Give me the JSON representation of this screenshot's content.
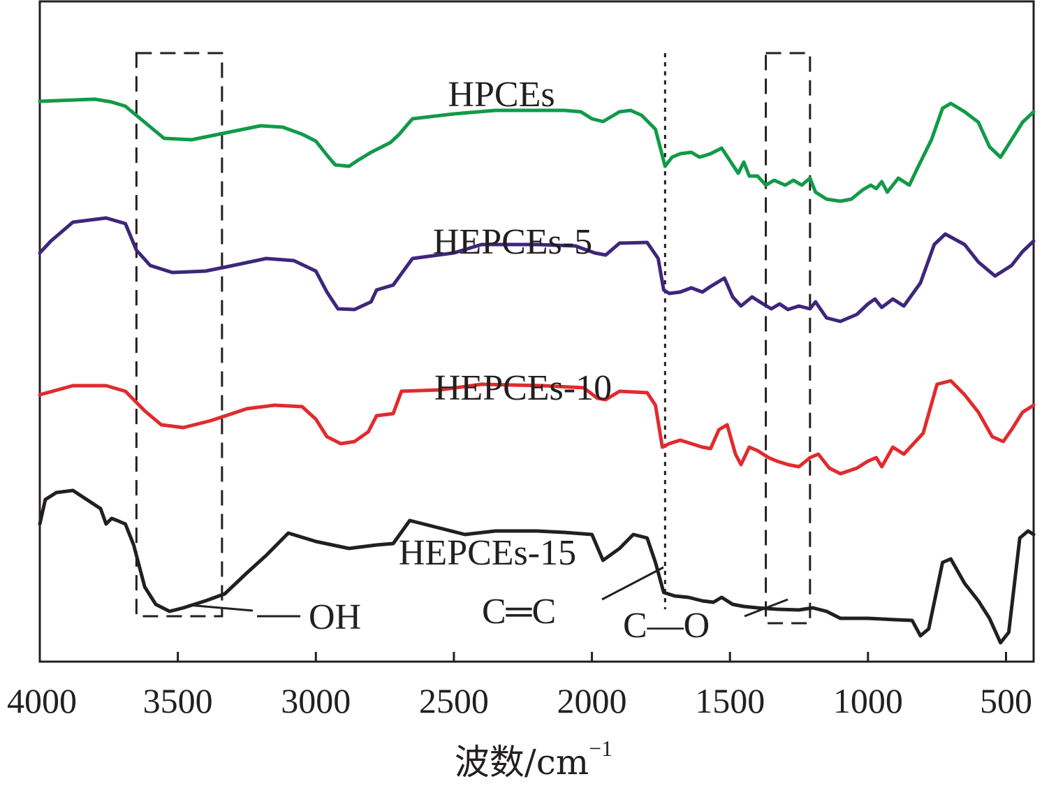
{
  "chart_data": {
    "type": "line",
    "title": "",
    "xlabel": "波数/cm",
    "xlabel_superscript": "−1",
    "ylabel": "",
    "xlim": [
      4000,
      400
    ],
    "x_ticks": [
      4000,
      3500,
      3000,
      2500,
      2000,
      1500,
      1000,
      500
    ],
    "y_axis": "transmittance (arbitrary units, offset, no ticks)",
    "grid": false,
    "series": [
      {
        "name": "HPCEs",
        "color": "#119a48",
        "offset": 3,
        "points": [
          [
            4000,
            0.15
          ],
          [
            3800,
            0.12
          ],
          [
            3740,
            0.16
          ],
          [
            3690,
            0.22
          ],
          [
            3620,
            0.45
          ],
          [
            3550,
            0.68
          ],
          [
            3450,
            0.7
          ],
          [
            3300,
            0.58
          ],
          [
            3200,
            0.5
          ],
          [
            3120,
            0.52
          ],
          [
            3050,
            0.62
          ],
          [
            3000,
            0.72
          ],
          [
            2960,
            0.92
          ],
          [
            2930,
            1.06
          ],
          [
            2880,
            1.08
          ],
          [
            2850,
            1.0
          ],
          [
            2800,
            0.88
          ],
          [
            2730,
            0.74
          ],
          [
            2700,
            0.63
          ],
          [
            2650,
            0.4
          ],
          [
            2500,
            0.33
          ],
          [
            2350,
            0.28
          ],
          [
            2100,
            0.28
          ],
          [
            2040,
            0.3
          ],
          [
            2000,
            0.4
          ],
          [
            1960,
            0.44
          ],
          [
            1900,
            0.3
          ],
          [
            1860,
            0.28
          ],
          [
            1820,
            0.35
          ],
          [
            1770,
            0.55
          ],
          [
            1735,
            1.08
          ],
          [
            1710,
            0.95
          ],
          [
            1680,
            0.9
          ],
          [
            1640,
            0.88
          ],
          [
            1610,
            0.95
          ],
          [
            1570,
            0.9
          ],
          [
            1530,
            0.82
          ],
          [
            1500,
            1.0
          ],
          [
            1470,
            1.18
          ],
          [
            1450,
            1.02
          ],
          [
            1430,
            1.22
          ],
          [
            1400,
            1.22
          ],
          [
            1370,
            1.35
          ],
          [
            1340,
            1.28
          ],
          [
            1300,
            1.35
          ],
          [
            1270,
            1.28
          ],
          [
            1240,
            1.35
          ],
          [
            1210,
            1.25
          ],
          [
            1190,
            1.45
          ],
          [
            1150,
            1.55
          ],
          [
            1100,
            1.58
          ],
          [
            1060,
            1.55
          ],
          [
            1020,
            1.42
          ],
          [
            990,
            1.35
          ],
          [
            970,
            1.4
          ],
          [
            950,
            1.3
          ],
          [
            930,
            1.45
          ],
          [
            890,
            1.25
          ],
          [
            850,
            1.35
          ],
          [
            820,
            1.1
          ],
          [
            770,
            0.7
          ],
          [
            730,
            0.25
          ],
          [
            700,
            0.18
          ],
          [
            650,
            0.3
          ],
          [
            600,
            0.45
          ],
          [
            560,
            0.8
          ],
          [
            520,
            0.95
          ],
          [
            480,
            0.7
          ],
          [
            440,
            0.45
          ],
          [
            400,
            0.3
          ]
        ]
      },
      {
        "name": "HEPCEs-5",
        "color": "#3e267b",
        "offset": 2,
        "points": [
          [
            4000,
            0.22
          ],
          [
            3960,
            0.05
          ],
          [
            3880,
            -0.22
          ],
          [
            3760,
            -0.28
          ],
          [
            3690,
            -0.2
          ],
          [
            3650,
            0.18
          ],
          [
            3600,
            0.4
          ],
          [
            3520,
            0.5
          ],
          [
            3400,
            0.48
          ],
          [
            3300,
            0.4
          ],
          [
            3180,
            0.3
          ],
          [
            3080,
            0.33
          ],
          [
            3000,
            0.48
          ],
          [
            2960,
            0.78
          ],
          [
            2920,
            1.02
          ],
          [
            2860,
            1.03
          ],
          [
            2800,
            0.92
          ],
          [
            2780,
            0.75
          ],
          [
            2720,
            0.68
          ],
          [
            2650,
            0.3
          ],
          [
            2500,
            0.22
          ],
          [
            2400,
            0.1
          ],
          [
            2200,
            0.1
          ],
          [
            2060,
            0.12
          ],
          [
            1990,
            0.22
          ],
          [
            1950,
            0.25
          ],
          [
            1900,
            0.08
          ],
          [
            1800,
            0.07
          ],
          [
            1760,
            0.3
          ],
          [
            1740,
            0.75
          ],
          [
            1720,
            0.8
          ],
          [
            1680,
            0.78
          ],
          [
            1640,
            0.72
          ],
          [
            1600,
            0.78
          ],
          [
            1570,
            0.7
          ],
          [
            1520,
            0.58
          ],
          [
            1490,
            0.85
          ],
          [
            1460,
            0.98
          ],
          [
            1420,
            0.85
          ],
          [
            1380,
            0.95
          ],
          [
            1350,
            1.02
          ],
          [
            1320,
            0.95
          ],
          [
            1290,
            1.03
          ],
          [
            1250,
            0.98
          ],
          [
            1210,
            1.02
          ],
          [
            1190,
            0.92
          ],
          [
            1150,
            1.15
          ],
          [
            1100,
            1.2
          ],
          [
            1040,
            1.1
          ],
          [
            1000,
            0.95
          ],
          [
            975,
            0.88
          ],
          [
            950,
            1.0
          ],
          [
            910,
            0.88
          ],
          [
            870,
            0.98
          ],
          [
            810,
            0.65
          ],
          [
            760,
            0.1
          ],
          [
            720,
            -0.05
          ],
          [
            650,
            0.1
          ],
          [
            600,
            0.35
          ],
          [
            540,
            0.55
          ],
          [
            480,
            0.4
          ],
          [
            440,
            0.2
          ],
          [
            400,
            0.05
          ]
        ]
      },
      {
        "name": "HEPCEs-10",
        "color": "#e02b2e",
        "offset": 1,
        "points": [
          [
            4000,
            0.25
          ],
          [
            3880,
            0.12
          ],
          [
            3760,
            0.12
          ],
          [
            3690,
            0.2
          ],
          [
            3620,
            0.48
          ],
          [
            3560,
            0.68
          ],
          [
            3480,
            0.72
          ],
          [
            3380,
            0.62
          ],
          [
            3250,
            0.45
          ],
          [
            3150,
            0.4
          ],
          [
            3050,
            0.42
          ],
          [
            3000,
            0.6
          ],
          [
            2960,
            0.85
          ],
          [
            2910,
            0.95
          ],
          [
            2860,
            0.92
          ],
          [
            2810,
            0.78
          ],
          [
            2780,
            0.55
          ],
          [
            2720,
            0.52
          ],
          [
            2690,
            0.2
          ],
          [
            2550,
            0.18
          ],
          [
            2400,
            0.1
          ],
          [
            2180,
            0.12
          ],
          [
            2030,
            0.15
          ],
          [
            1980,
            0.3
          ],
          [
            1950,
            0.32
          ],
          [
            1900,
            0.2
          ],
          [
            1800,
            0.22
          ],
          [
            1770,
            0.4
          ],
          [
            1745,
            1.0
          ],
          [
            1720,
            0.95
          ],
          [
            1680,
            0.9
          ],
          [
            1640,
            0.95
          ],
          [
            1600,
            1.0
          ],
          [
            1570,
            1.02
          ],
          [
            1540,
            0.75
          ],
          [
            1510,
            0.68
          ],
          [
            1480,
            1.1
          ],
          [
            1460,
            1.25
          ],
          [
            1430,
            1.0
          ],
          [
            1400,
            1.05
          ],
          [
            1360,
            1.15
          ],
          [
            1330,
            1.2
          ],
          [
            1290,
            1.25
          ],
          [
            1250,
            1.28
          ],
          [
            1210,
            1.15
          ],
          [
            1180,
            1.1
          ],
          [
            1140,
            1.3
          ],
          [
            1100,
            1.38
          ],
          [
            1040,
            1.3
          ],
          [
            1000,
            1.2
          ],
          [
            970,
            1.15
          ],
          [
            950,
            1.28
          ],
          [
            910,
            1.0
          ],
          [
            870,
            1.1
          ],
          [
            800,
            0.8
          ],
          [
            750,
            0.1
          ],
          [
            700,
            0.05
          ],
          [
            650,
            0.25
          ],
          [
            600,
            0.5
          ],
          [
            550,
            0.85
          ],
          [
            510,
            0.92
          ],
          [
            480,
            0.75
          ],
          [
            440,
            0.5
          ],
          [
            400,
            0.4
          ]
        ]
      },
      {
        "name": "HEPCEs-15",
        "color": "#231f20",
        "offset": 0,
        "points": [
          [
            4000,
            -0.1
          ],
          [
            3980,
            -0.45
          ],
          [
            3940,
            -0.55
          ],
          [
            3880,
            -0.58
          ],
          [
            3830,
            -0.45
          ],
          [
            3780,
            -0.32
          ],
          [
            3760,
            -0.1
          ],
          [
            3740,
            -0.18
          ],
          [
            3720,
            -0.15
          ],
          [
            3690,
            -0.1
          ],
          [
            3660,
            0.2
          ],
          [
            3620,
            0.8
          ],
          [
            3580,
            1.05
          ],
          [
            3530,
            1.15
          ],
          [
            3480,
            1.1
          ],
          [
            3400,
            1.0
          ],
          [
            3330,
            0.9
          ],
          [
            3250,
            0.6
          ],
          [
            3180,
            0.35
          ],
          [
            3100,
            0.03
          ],
          [
            3000,
            0.15
          ],
          [
            2880,
            0.25
          ],
          [
            2780,
            0.2
          ],
          [
            2720,
            0.18
          ],
          [
            2660,
            -0.15
          ],
          [
            2560,
            -0.05
          ],
          [
            2460,
            0.05
          ],
          [
            2350,
            0.0
          ],
          [
            2200,
            0.0
          ],
          [
            2100,
            0.02
          ],
          [
            2000,
            0.05
          ],
          [
            1960,
            0.42
          ],
          [
            1900,
            0.25
          ],
          [
            1850,
            0.05
          ],
          [
            1800,
            0.1
          ],
          [
            1770,
            0.45
          ],
          [
            1740,
            0.88
          ],
          [
            1700,
            0.93
          ],
          [
            1650,
            0.95
          ],
          [
            1600,
            1.0
          ],
          [
            1560,
            1.02
          ],
          [
            1530,
            0.95
          ],
          [
            1490,
            1.05
          ],
          [
            1450,
            1.08
          ],
          [
            1400,
            1.1
          ],
          [
            1330,
            1.12
          ],
          [
            1250,
            1.13
          ],
          [
            1200,
            1.1
          ],
          [
            1150,
            1.15
          ],
          [
            1100,
            1.25
          ],
          [
            1000,
            1.25
          ],
          [
            900,
            1.27
          ],
          [
            840,
            1.28
          ],
          [
            810,
            1.5
          ],
          [
            780,
            1.4
          ],
          [
            730,
            0.45
          ],
          [
            700,
            0.4
          ],
          [
            650,
            0.75
          ],
          [
            600,
            1.0
          ],
          [
            560,
            1.25
          ],
          [
            520,
            1.6
          ],
          [
            490,
            1.45
          ],
          [
            450,
            0.1
          ],
          [
            420,
            0.0
          ],
          [
            400,
            0.05
          ]
        ]
      }
    ],
    "annotations": {
      "oh": "OH",
      "cc": "C═C",
      "co": "C—O",
      "oh_box_range": [
        3650,
        3340
      ],
      "co_box_range": [
        1370,
        1210
      ],
      "cc_line_at": 1735
    }
  }
}
